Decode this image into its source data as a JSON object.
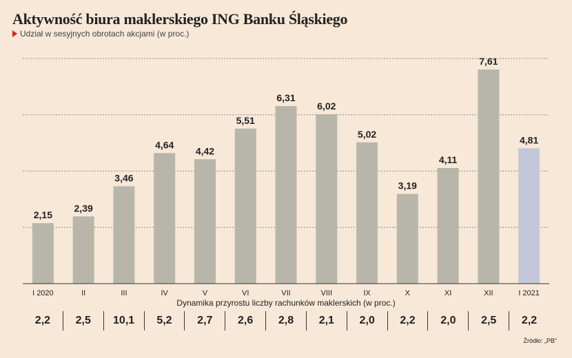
{
  "title": "Aktywność biura maklerskiego ING Banku Śląskiego",
  "subtitle": "Udział w sesyjnych obrotach akcjami (w proc.)",
  "source": "Źródło: „PB”",
  "colors": {
    "background": "#f8e8d8",
    "bar": "#b8b6aa",
    "bar_highlight": "#c3c7d9",
    "accent": "#d9231d"
  },
  "chart_data": {
    "type": "bar",
    "categories": [
      "I 2020",
      "II",
      "III",
      "IV",
      "V",
      "VI",
      "VII",
      "VIII",
      "IX",
      "X",
      "XI",
      "XII",
      "I 2021"
    ],
    "values": [
      2.15,
      2.39,
      3.46,
      4.64,
      4.42,
      5.51,
      6.31,
      6.02,
      5.02,
      3.19,
      4.11,
      7.61,
      4.81
    ],
    "value_labels": [
      "2,15",
      "2,39",
      "3,46",
      "4,64",
      "4,42",
      "5,51",
      "6,31",
      "6,02",
      "5,02",
      "3,19",
      "4,11",
      "7,61",
      "4,81"
    ],
    "highlight_index": 12,
    "title": "Aktywność biura maklerskiego ING Banku Śląskiego",
    "subtitle": "Udział w sesyjnych obrotach akcjami (w proc.)",
    "ylim": [
      0,
      8
    ],
    "grid": true
  },
  "dynamics": {
    "title": "Dynamika przyrostu liczby rachunków maklerskich (w proc.)",
    "values": [
      "2,2",
      "2,5",
      "10,1",
      "5,2",
      "2,7",
      "2,6",
      "2,8",
      "2,1",
      "2,0",
      "2,2",
      "2,0",
      "2,5",
      "2,2"
    ]
  }
}
